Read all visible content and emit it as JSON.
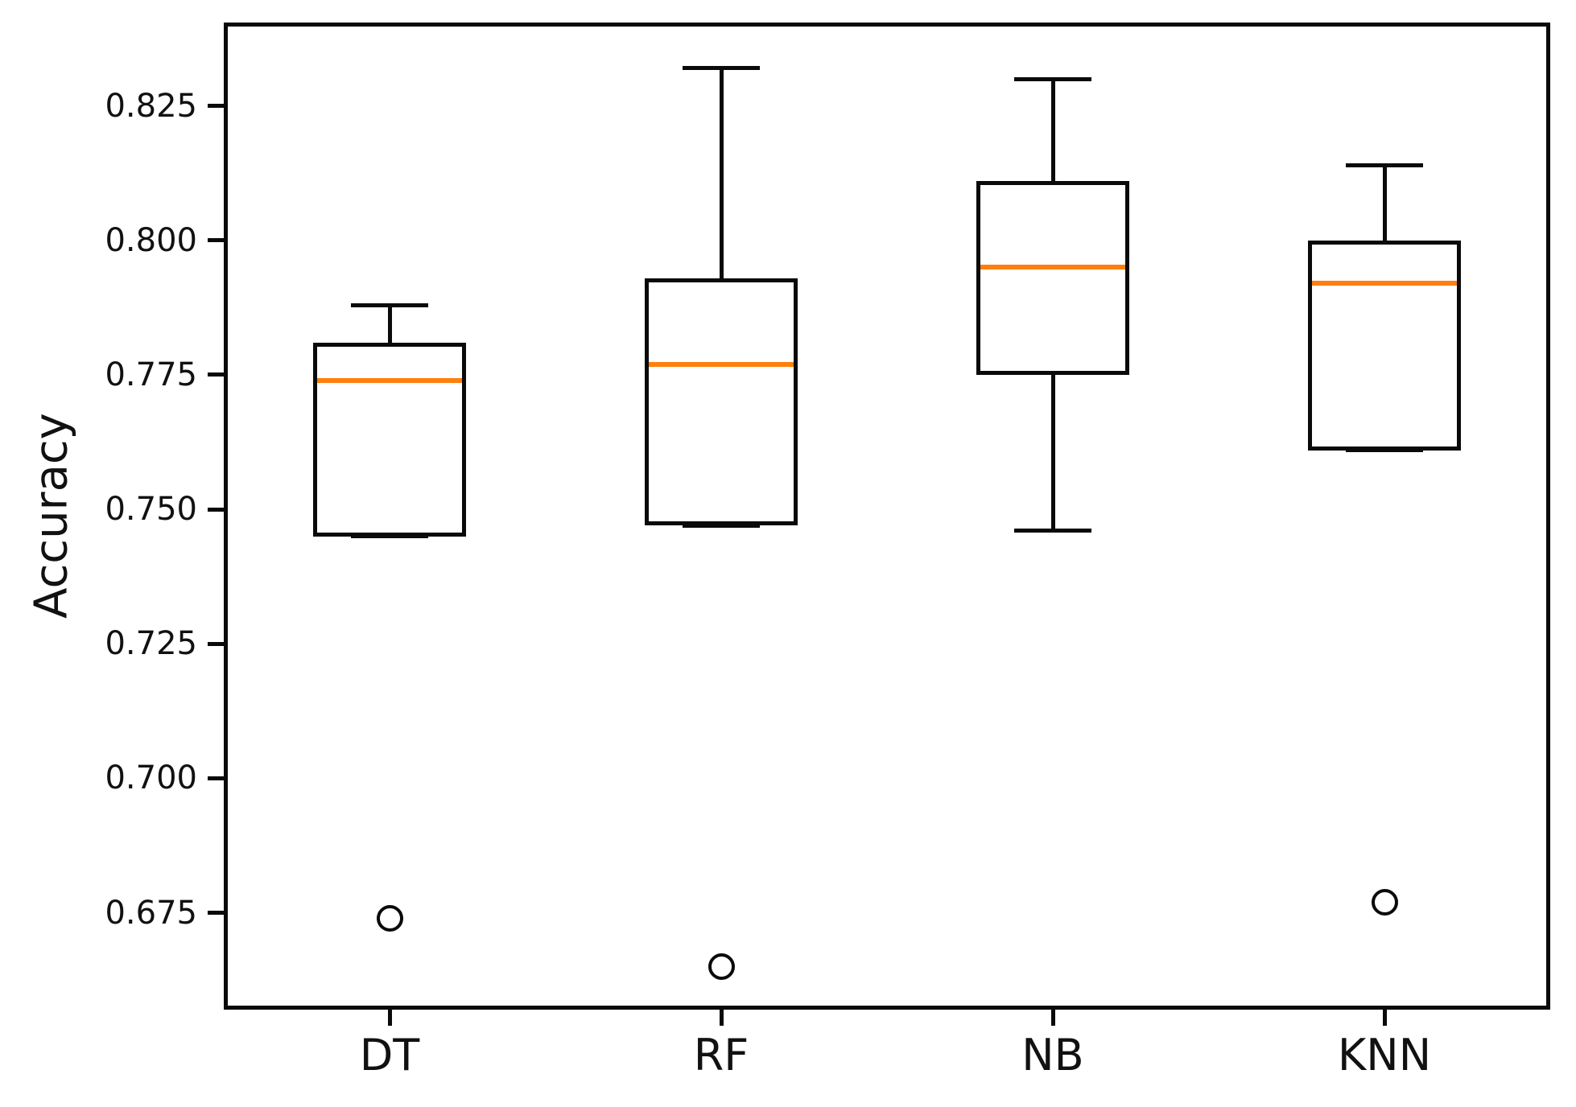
{
  "chart_data": {
    "type": "boxplot",
    "title": "",
    "xlabel": "",
    "ylabel": "Accuracy",
    "categories": [
      "DT",
      "RF",
      "NB",
      "KNN"
    ],
    "ylim": [
      0.657,
      0.8405
    ],
    "yticks": [
      0.675,
      0.7,
      0.725,
      0.75,
      0.775,
      0.8,
      0.825
    ],
    "ytick_labels": [
      "0.675",
      "0.700",
      "0.725",
      "0.750",
      "0.775",
      "0.800",
      "0.825"
    ],
    "grid": false,
    "legend": null,
    "colors": {
      "median": "#ff7f0e",
      "box_stroke": "#0a0a0a",
      "spine": "#0a0a0a",
      "text": "#111111",
      "background": "#ffffff"
    },
    "series": [
      {
        "name": "DT",
        "whislo": 0.745,
        "q1": 0.745,
        "med": 0.774,
        "q3": 0.781,
        "whishi": 0.788,
        "fliers": [
          0.674
        ]
      },
      {
        "name": "RF",
        "whislo": 0.747,
        "q1": 0.747,
        "med": 0.777,
        "q3": 0.793,
        "whishi": 0.832,
        "fliers": [
          0.665
        ]
      },
      {
        "name": "NB",
        "whislo": 0.746,
        "q1": 0.775,
        "med": 0.795,
        "q3": 0.811,
        "whishi": 0.83,
        "fliers": []
      },
      {
        "name": "KNN",
        "whislo": 0.761,
        "q1": 0.761,
        "med": 0.792,
        "q3": 0.8,
        "whishi": 0.814,
        "fliers": [
          0.677
        ]
      }
    ]
  }
}
